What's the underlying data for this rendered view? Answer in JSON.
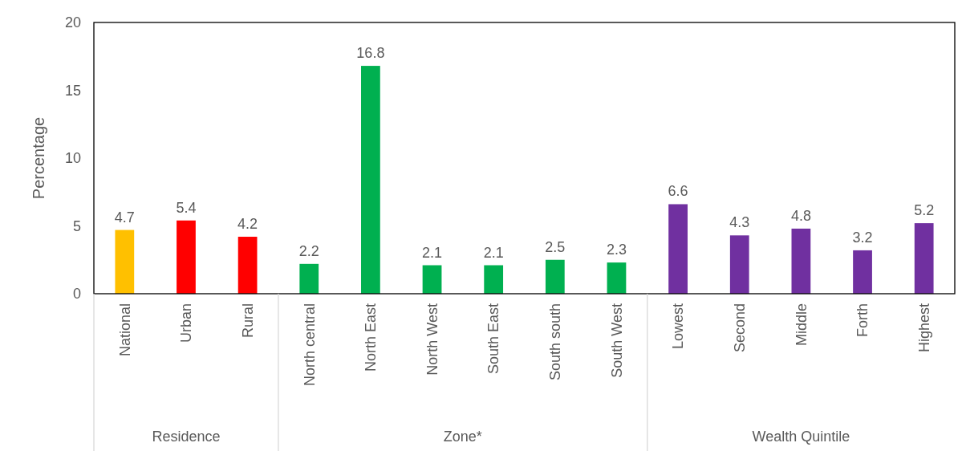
{
  "chart_data": {
    "type": "bar",
    "ylabel": "Percentage",
    "categories": [
      "National",
      "Urban",
      "Rural",
      "North central",
      "North East",
      "North West",
      "South East",
      "South south",
      "South West",
      "Lowest",
      "Second",
      "Middle",
      "Forth",
      "Highest"
    ],
    "values": [
      4.7,
      5.4,
      4.2,
      2.2,
      16.8,
      2.1,
      2.1,
      2.5,
      2.3,
      6.6,
      4.3,
      4.8,
      3.2,
      5.2
    ],
    "colors": [
      "#ffc000",
      "#ff0000",
      "#ff0000",
      "#00b050",
      "#00b050",
      "#00b050",
      "#00b050",
      "#00b050",
      "#00b050",
      "#7030a0",
      "#7030a0",
      "#7030a0",
      "#7030a0",
      "#7030a0"
    ],
    "ylim": [
      0,
      20
    ],
    "yticks": [
      0,
      5,
      10,
      15,
      20
    ],
    "data_labels": true,
    "grid": false,
    "annotations": [
      "Residence",
      "Zone*",
      "Wealth Quintile"
    ]
  }
}
